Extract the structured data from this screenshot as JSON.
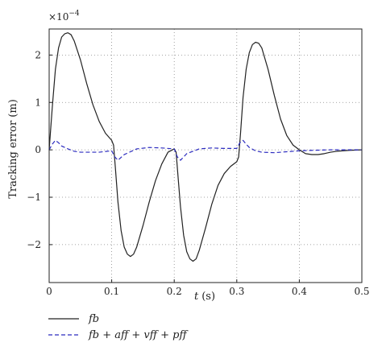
{
  "chart_data": {
    "type": "line",
    "xlabel_var": "t",
    "xlabel_unit": "(s)",
    "ylabel": "Tracking error (m)",
    "y_multiplier": "×10",
    "y_multiplier_exp": "−4",
    "xlim": [
      0,
      0.5
    ],
    "ylim": [
      -2.8,
      2.55
    ],
    "xticks": [
      0,
      0.1,
      0.2,
      0.3,
      0.4,
      0.5
    ],
    "xtick_labels": [
      "0",
      "0.1",
      "0.2",
      "0.3",
      "0.4",
      "0.5"
    ],
    "yticks": [
      -2,
      -1,
      0,
      1,
      2
    ],
    "ytick_labels": [
      "−2",
      "−1",
      "0",
      "1",
      "2"
    ],
    "grid": true,
    "legend_position": "bottom-outside",
    "series": [
      {
        "name": "fb",
        "color": "#222222",
        "dash": "solid",
        "x": [
          0,
          0.005,
          0.01,
          0.015,
          0.02,
          0.025,
          0.03,
          0.035,
          0.04,
          0.05,
          0.06,
          0.07,
          0.08,
          0.09,
          0.1,
          0.103,
          0.106,
          0.11,
          0.115,
          0.12,
          0.125,
          0.13,
          0.135,
          0.14,
          0.15,
          0.16,
          0.17,
          0.18,
          0.19,
          0.2,
          0.203,
          0.206,
          0.21,
          0.215,
          0.22,
          0.225,
          0.23,
          0.235,
          0.24,
          0.25,
          0.26,
          0.27,
          0.28,
          0.29,
          0.3,
          0.303,
          0.306,
          0.31,
          0.315,
          0.32,
          0.325,
          0.33,
          0.335,
          0.34,
          0.35,
          0.36,
          0.37,
          0.38,
          0.39,
          0.4,
          0.41,
          0.42,
          0.43,
          0.44,
          0.45,
          0.46,
          0.48,
          0.5
        ],
        "y": [
          0,
          0.9,
          1.7,
          2.15,
          2.38,
          2.45,
          2.47,
          2.43,
          2.3,
          1.9,
          1.4,
          0.95,
          0.6,
          0.35,
          0.2,
          0.1,
          -0.4,
          -1.1,
          -1.7,
          -2.05,
          -2.2,
          -2.25,
          -2.2,
          -2.05,
          -1.6,
          -1.1,
          -0.65,
          -0.3,
          -0.05,
          0.02,
          -0.05,
          -0.55,
          -1.2,
          -1.8,
          -2.15,
          -2.3,
          -2.35,
          -2.3,
          -2.12,
          -1.65,
          -1.15,
          -0.75,
          -0.5,
          -0.35,
          -0.25,
          -0.15,
          0.35,
          1.1,
          1.7,
          2.05,
          2.22,
          2.27,
          2.25,
          2.15,
          1.7,
          1.15,
          0.65,
          0.3,
          0.1,
          0.0,
          -0.08,
          -0.1,
          -0.1,
          -0.08,
          -0.05,
          -0.03,
          -0.01,
          0
        ]
      },
      {
        "name": "fb + aff + vff + pff",
        "color": "#2b2bbf",
        "dash": "dashed",
        "x": [
          0,
          0.005,
          0.01,
          0.015,
          0.02,
          0.03,
          0.04,
          0.05,
          0.06,
          0.08,
          0.1,
          0.105,
          0.11,
          0.12,
          0.14,
          0.16,
          0.18,
          0.2,
          0.205,
          0.21,
          0.22,
          0.24,
          0.26,
          0.28,
          0.3,
          0.305,
          0.31,
          0.315,
          0.32,
          0.33,
          0.34,
          0.36,
          0.38,
          0.4,
          0.42,
          0.45,
          0.5
        ],
        "y": [
          0,
          0.12,
          0.2,
          0.15,
          0.08,
          0.02,
          -0.03,
          -0.05,
          -0.05,
          -0.05,
          -0.02,
          -0.15,
          -0.22,
          -0.1,
          0.02,
          0.05,
          0.04,
          0.02,
          -0.15,
          -0.22,
          -0.08,
          0.02,
          0.04,
          0.03,
          0.03,
          0.15,
          0.2,
          0.12,
          0.05,
          -0.02,
          -0.05,
          -0.06,
          -0.04,
          -0.02,
          -0.01,
          0,
          0
        ]
      }
    ]
  }
}
